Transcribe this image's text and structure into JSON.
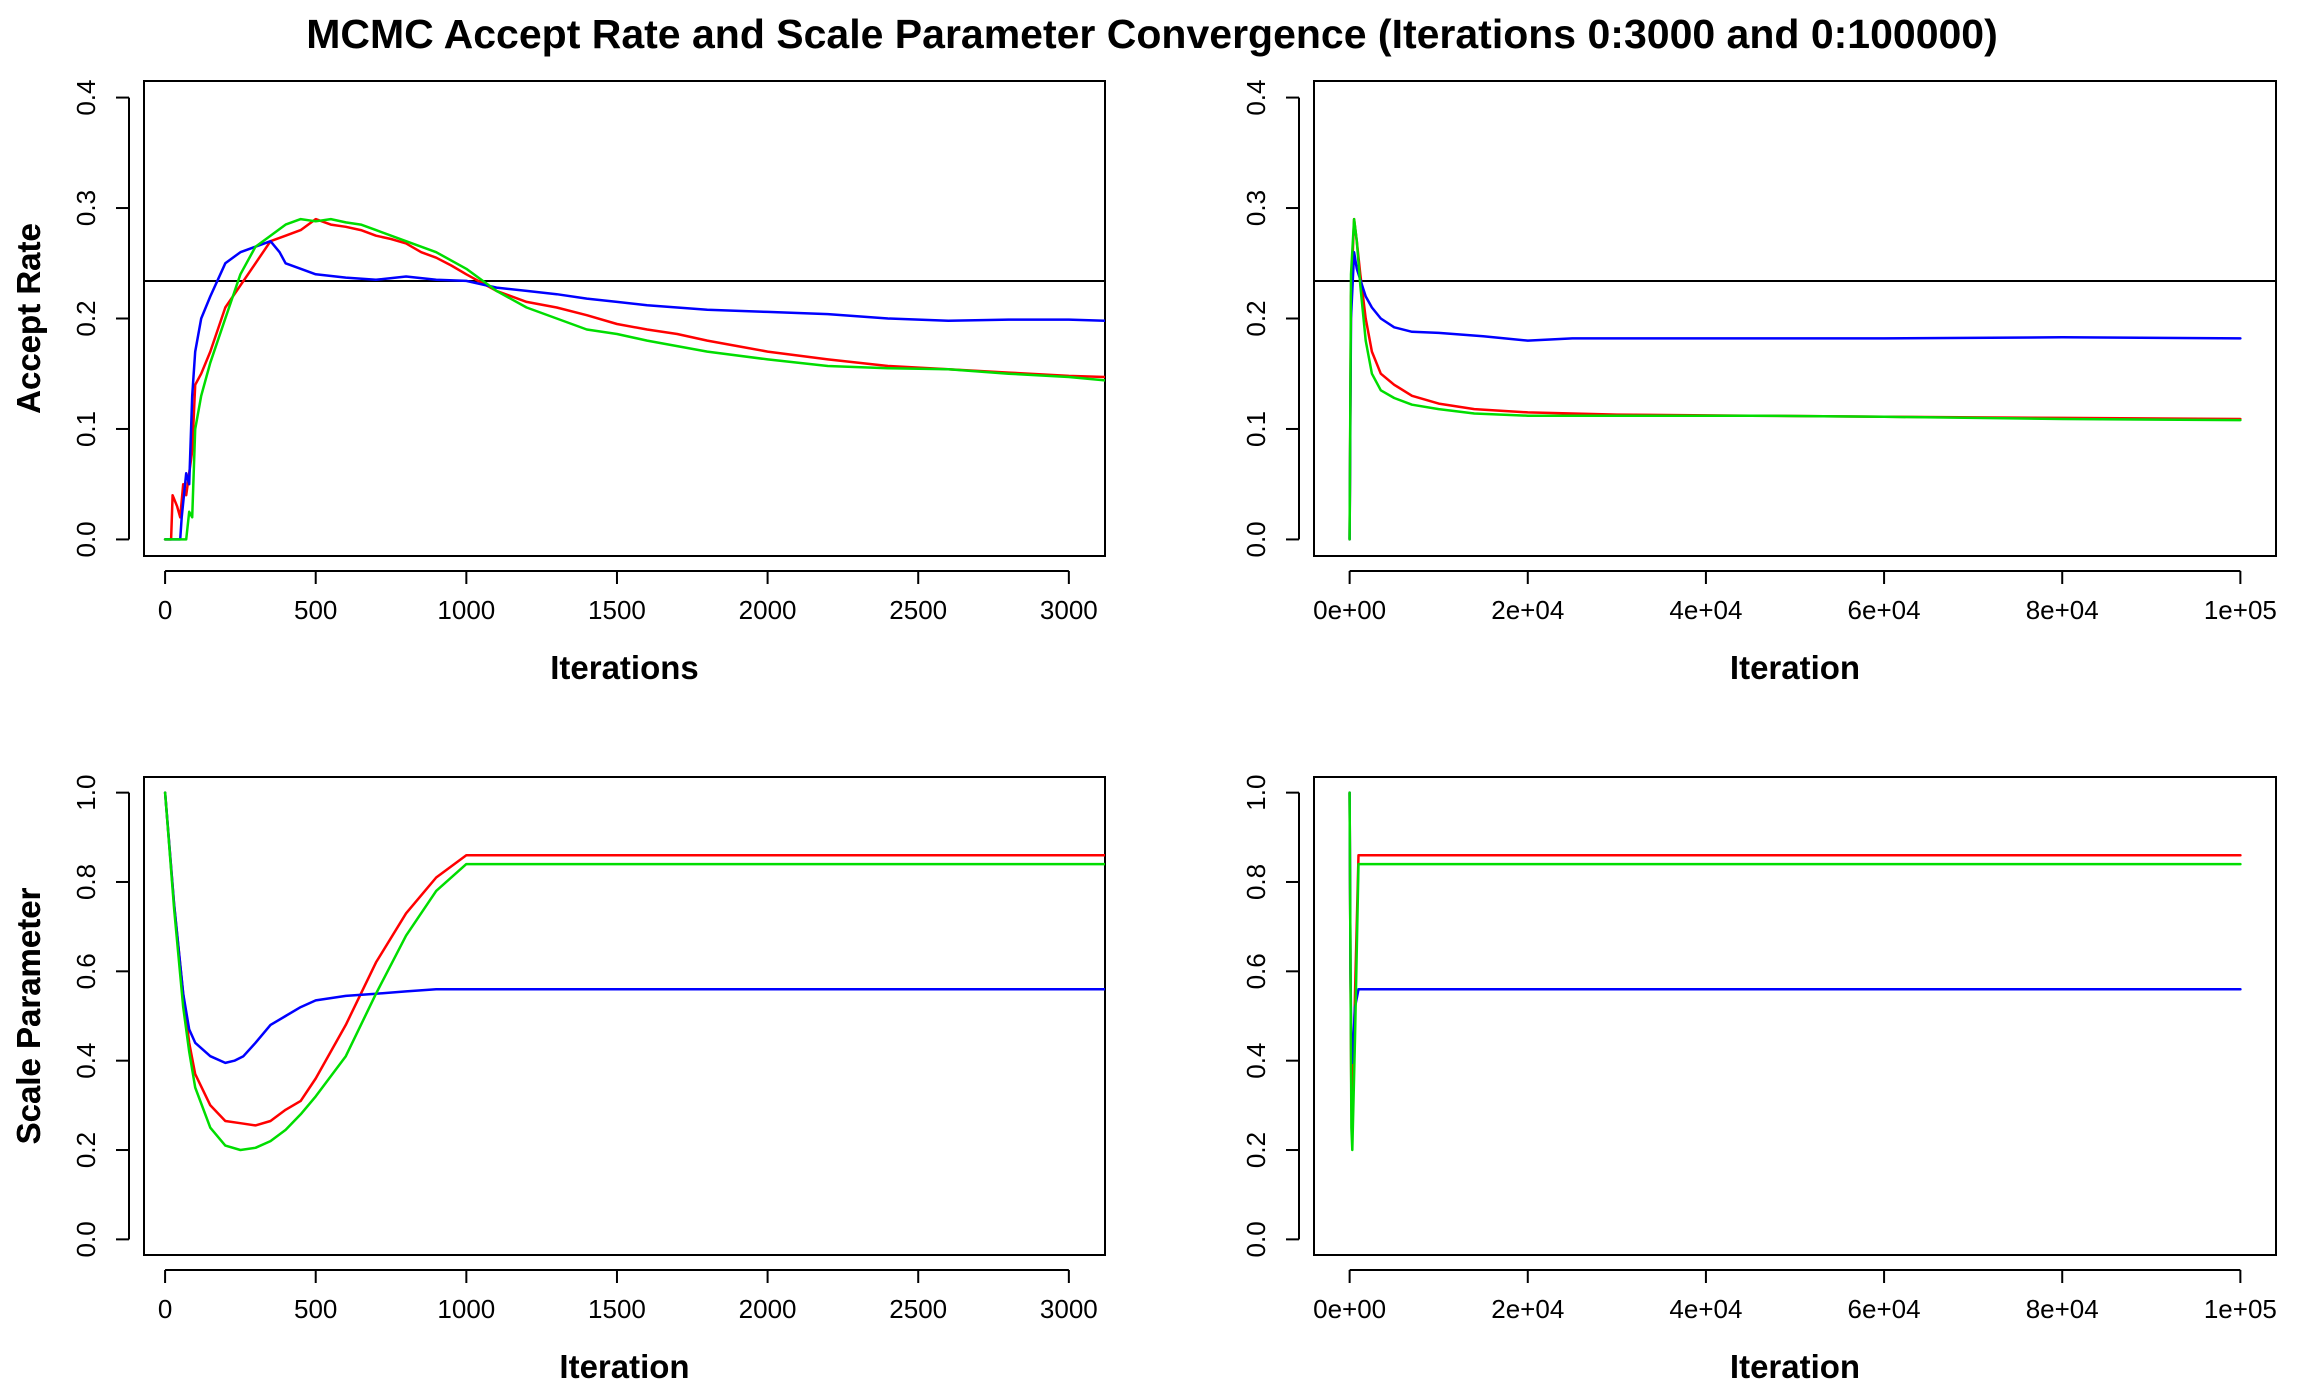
{
  "title": "MCMC Accept Rate and Scale Parameter Convergence (Iterations 0:3000 and 0:100000)",
  "colors": {
    "series1": "#ff0000",
    "series2": "#0000ff",
    "series3": "#00dd00",
    "reference": "#000000"
  },
  "chart_data": [
    {
      "type": "line",
      "ylabel": "Accept Rate",
      "xlabel": "Iterations",
      "xlim": [
        -70,
        3120
      ],
      "ylim": [
        -0.015,
        0.415
      ],
      "xticks": [
        0,
        500,
        1000,
        1500,
        2000,
        2500,
        3000
      ],
      "xtick_labels": [
        "0",
        "500",
        "1000",
        "1500",
        "2000",
        "2500",
        "3000"
      ],
      "yticks": [
        0.0,
        0.1,
        0.2,
        0.3,
        0.4
      ],
      "ytick_labels": [
        "0.0",
        "0.1",
        "0.2",
        "0.3",
        "0.4"
      ],
      "hline": 0.234,
      "series": [
        {
          "color": "#ff0000",
          "x": [
            0,
            20,
            25,
            40,
            50,
            60,
            70,
            80,
            90,
            100,
            120,
            150,
            200,
            250,
            300,
            350,
            400,
            450,
            500,
            550,
            600,
            650,
            700,
            750,
            800,
            850,
            900,
            950,
            1000,
            1100,
            1200,
            1300,
            1400,
            1500,
            1600,
            1700,
            1800,
            1900,
            2000,
            2200,
            2400,
            2600,
            2800,
            3000,
            3120
          ],
          "y": [
            0,
            0,
            0.04,
            0.03,
            0.02,
            0.05,
            0.04,
            0.06,
            0.08,
            0.14,
            0.15,
            0.17,
            0.21,
            0.23,
            0.25,
            0.27,
            0.275,
            0.28,
            0.29,
            0.285,
            0.283,
            0.28,
            0.275,
            0.272,
            0.268,
            0.26,
            0.255,
            0.248,
            0.24,
            0.225,
            0.215,
            0.21,
            0.203,
            0.195,
            0.19,
            0.186,
            0.18,
            0.175,
            0.17,
            0.163,
            0.157,
            0.154,
            0.151,
            0.148,
            0.147
          ]
        },
        {
          "color": "#0000ff",
          "x": [
            0,
            50,
            55,
            70,
            80,
            90,
            100,
            120,
            150,
            200,
            250,
            300,
            350,
            380,
            400,
            450,
            500,
            600,
            700,
            800,
            900,
            1000,
            1100,
            1200,
            1300,
            1400,
            1500,
            1600,
            1700,
            1800,
            2000,
            2200,
            2400,
            2600,
            2800,
            3000,
            3120
          ],
          "y": [
            0,
            0,
            0.02,
            0.06,
            0.05,
            0.13,
            0.17,
            0.2,
            0.22,
            0.25,
            0.26,
            0.265,
            0.27,
            0.26,
            0.25,
            0.245,
            0.24,
            0.237,
            0.235,
            0.238,
            0.235,
            0.234,
            0.228,
            0.225,
            0.222,
            0.218,
            0.215,
            0.212,
            0.21,
            0.208,
            0.206,
            0.204,
            0.2,
            0.198,
            0.199,
            0.199,
            0.198
          ]
        },
        {
          "color": "#00dd00",
          "x": [
            0,
            70,
            80,
            90,
            100,
            120,
            150,
            200,
            250,
            300,
            350,
            400,
            450,
            500,
            550,
            600,
            650,
            700,
            800,
            900,
            1000,
            1100,
            1200,
            1300,
            1400,
            1500,
            1600,
            1700,
            1800,
            2000,
            2200,
            2400,
            2600,
            2800,
            3000,
            3120
          ],
          "y": [
            0,
            0,
            0.025,
            0.02,
            0.1,
            0.13,
            0.16,
            0.2,
            0.24,
            0.265,
            0.275,
            0.285,
            0.29,
            0.288,
            0.29,
            0.287,
            0.285,
            0.28,
            0.27,
            0.26,
            0.245,
            0.225,
            0.21,
            0.2,
            0.19,
            0.186,
            0.18,
            0.175,
            0.17,
            0.163,
            0.157,
            0.155,
            0.154,
            0.15,
            0.147,
            0.144
          ]
        }
      ]
    },
    {
      "type": "line",
      "ylabel": "Accept Rate",
      "xlabel": "Iteration",
      "xlim": [
        -4000,
        104000
      ],
      "ylim": [
        -0.015,
        0.415
      ],
      "xticks": [
        0,
        20000,
        40000,
        60000,
        80000,
        100000
      ],
      "xtick_labels": [
        "0e+00",
        "2e+04",
        "4e+04",
        "6e+04",
        "8e+04",
        "1e+05"
      ],
      "yticks": [
        0.0,
        0.1,
        0.2,
        0.3,
        0.4
      ],
      "ytick_labels": [
        "0.0",
        "0.1",
        "0.2",
        "0.3",
        "0.4"
      ],
      "hline": 0.234,
      "series": [
        {
          "color": "#ff0000",
          "x": [
            0,
            150,
            500,
            800,
            1200,
            1800,
            2500,
            3500,
            5000,
            7000,
            10000,
            14000,
            20000,
            30000,
            45000,
            60000,
            80000,
            100000
          ],
          "y": [
            0,
            0.22,
            0.29,
            0.27,
            0.24,
            0.2,
            0.17,
            0.15,
            0.14,
            0.13,
            0.123,
            0.118,
            0.115,
            0.113,
            0.112,
            0.111,
            0.11,
            0.109
          ]
        },
        {
          "color": "#0000ff",
          "x": [
            0,
            150,
            500,
            800,
            1200,
            1800,
            2500,
            3500,
            5000,
            7000,
            10000,
            15000,
            20000,
            25000,
            40000,
            60000,
            80000,
            100000
          ],
          "y": [
            0,
            0.2,
            0.26,
            0.245,
            0.235,
            0.22,
            0.21,
            0.2,
            0.192,
            0.188,
            0.187,
            0.184,
            0.18,
            0.182,
            0.182,
            0.182,
            0.183,
            0.182
          ]
        },
        {
          "color": "#00dd00",
          "x": [
            0,
            150,
            500,
            800,
            1200,
            1800,
            2500,
            3500,
            5000,
            7000,
            10000,
            14000,
            20000,
            30000,
            45000,
            60000,
            80000,
            100000
          ],
          "y": [
            0,
            0.24,
            0.29,
            0.27,
            0.23,
            0.18,
            0.15,
            0.135,
            0.128,
            0.122,
            0.118,
            0.114,
            0.112,
            0.112,
            0.112,
            0.111,
            0.109,
            0.108
          ]
        }
      ]
    },
    {
      "type": "line",
      "ylabel": "Scale Parameter",
      "xlabel": "Iteration",
      "xlim": [
        -70,
        3120
      ],
      "ylim": [
        -0.035,
        1.035
      ],
      "xticks": [
        0,
        500,
        1000,
        1500,
        2000,
        2500,
        3000
      ],
      "xtick_labels": [
        "0",
        "500",
        "1000",
        "1500",
        "2000",
        "2500",
        "3000"
      ],
      "yticks": [
        0.0,
        0.2,
        0.4,
        0.6,
        0.8,
        1.0
      ],
      "ytick_labels": [
        "0.0",
        "0.2",
        "0.4",
        "0.6",
        "0.8",
        "1.0"
      ],
      "series": [
        {
          "color": "#ff0000",
          "x": [
            0,
            30,
            60,
            80,
            100,
            150,
            200,
            250,
            300,
            350,
            400,
            450,
            500,
            600,
            700,
            800,
            900,
            1000,
            3120
          ],
          "y": [
            1.0,
            0.75,
            0.55,
            0.44,
            0.37,
            0.3,
            0.265,
            0.26,
            0.255,
            0.265,
            0.29,
            0.31,
            0.36,
            0.48,
            0.62,
            0.73,
            0.81,
            0.86,
            0.86
          ]
        },
        {
          "color": "#0000ff",
          "x": [
            0,
            30,
            60,
            80,
            100,
            150,
            200,
            230,
            260,
            300,
            350,
            400,
            450,
            500,
            600,
            700,
            800,
            900,
            1000,
            3120
          ],
          "y": [
            1.0,
            0.75,
            0.55,
            0.47,
            0.44,
            0.41,
            0.395,
            0.4,
            0.41,
            0.44,
            0.48,
            0.5,
            0.52,
            0.535,
            0.545,
            0.55,
            0.555,
            0.56,
            0.56,
            0.56
          ]
        },
        {
          "color": "#00dd00",
          "x": [
            0,
            30,
            60,
            80,
            100,
            150,
            200,
            250,
            300,
            350,
            400,
            450,
            500,
            600,
            700,
            800,
            900,
            1000,
            3120
          ],
          "y": [
            1.0,
            0.74,
            0.52,
            0.42,
            0.34,
            0.25,
            0.21,
            0.2,
            0.205,
            0.22,
            0.245,
            0.28,
            0.32,
            0.41,
            0.55,
            0.68,
            0.78,
            0.84,
            0.84
          ]
        }
      ]
    },
    {
      "type": "line",
      "ylabel": "Scale Parameter",
      "xlabel": "Iteration",
      "xlim": [
        -4000,
        104000
      ],
      "ylim": [
        -0.035,
        1.035
      ],
      "xticks": [
        0,
        20000,
        40000,
        60000,
        80000,
        100000
      ],
      "xtick_labels": [
        "0e+00",
        "2e+04",
        "4e+04",
        "6e+04",
        "8e+04",
        "1e+05"
      ],
      "yticks": [
        0.0,
        0.2,
        0.4,
        0.6,
        0.8,
        1.0
      ],
      "ytick_labels": [
        "0.0",
        "0.2",
        "0.4",
        "0.6",
        "0.8",
        "1.0"
      ],
      "series": [
        {
          "color": "#ff0000",
          "x": [
            0,
            100,
            200,
            300,
            600,
            1000,
            100000
          ],
          "y": [
            1.0,
            0.6,
            0.3,
            0.26,
            0.55,
            0.86,
            0.86
          ]
        },
        {
          "color": "#0000ff",
          "x": [
            0,
            100,
            200,
            300,
            600,
            1000,
            100000
          ],
          "y": [
            1.0,
            0.6,
            0.42,
            0.395,
            0.52,
            0.56,
            0.56
          ]
        },
        {
          "color": "#00dd00",
          "x": [
            0,
            100,
            200,
            300,
            600,
            1000,
            100000
          ],
          "y": [
            1.0,
            0.6,
            0.25,
            0.2,
            0.45,
            0.84,
            0.84
          ]
        }
      ]
    }
  ]
}
